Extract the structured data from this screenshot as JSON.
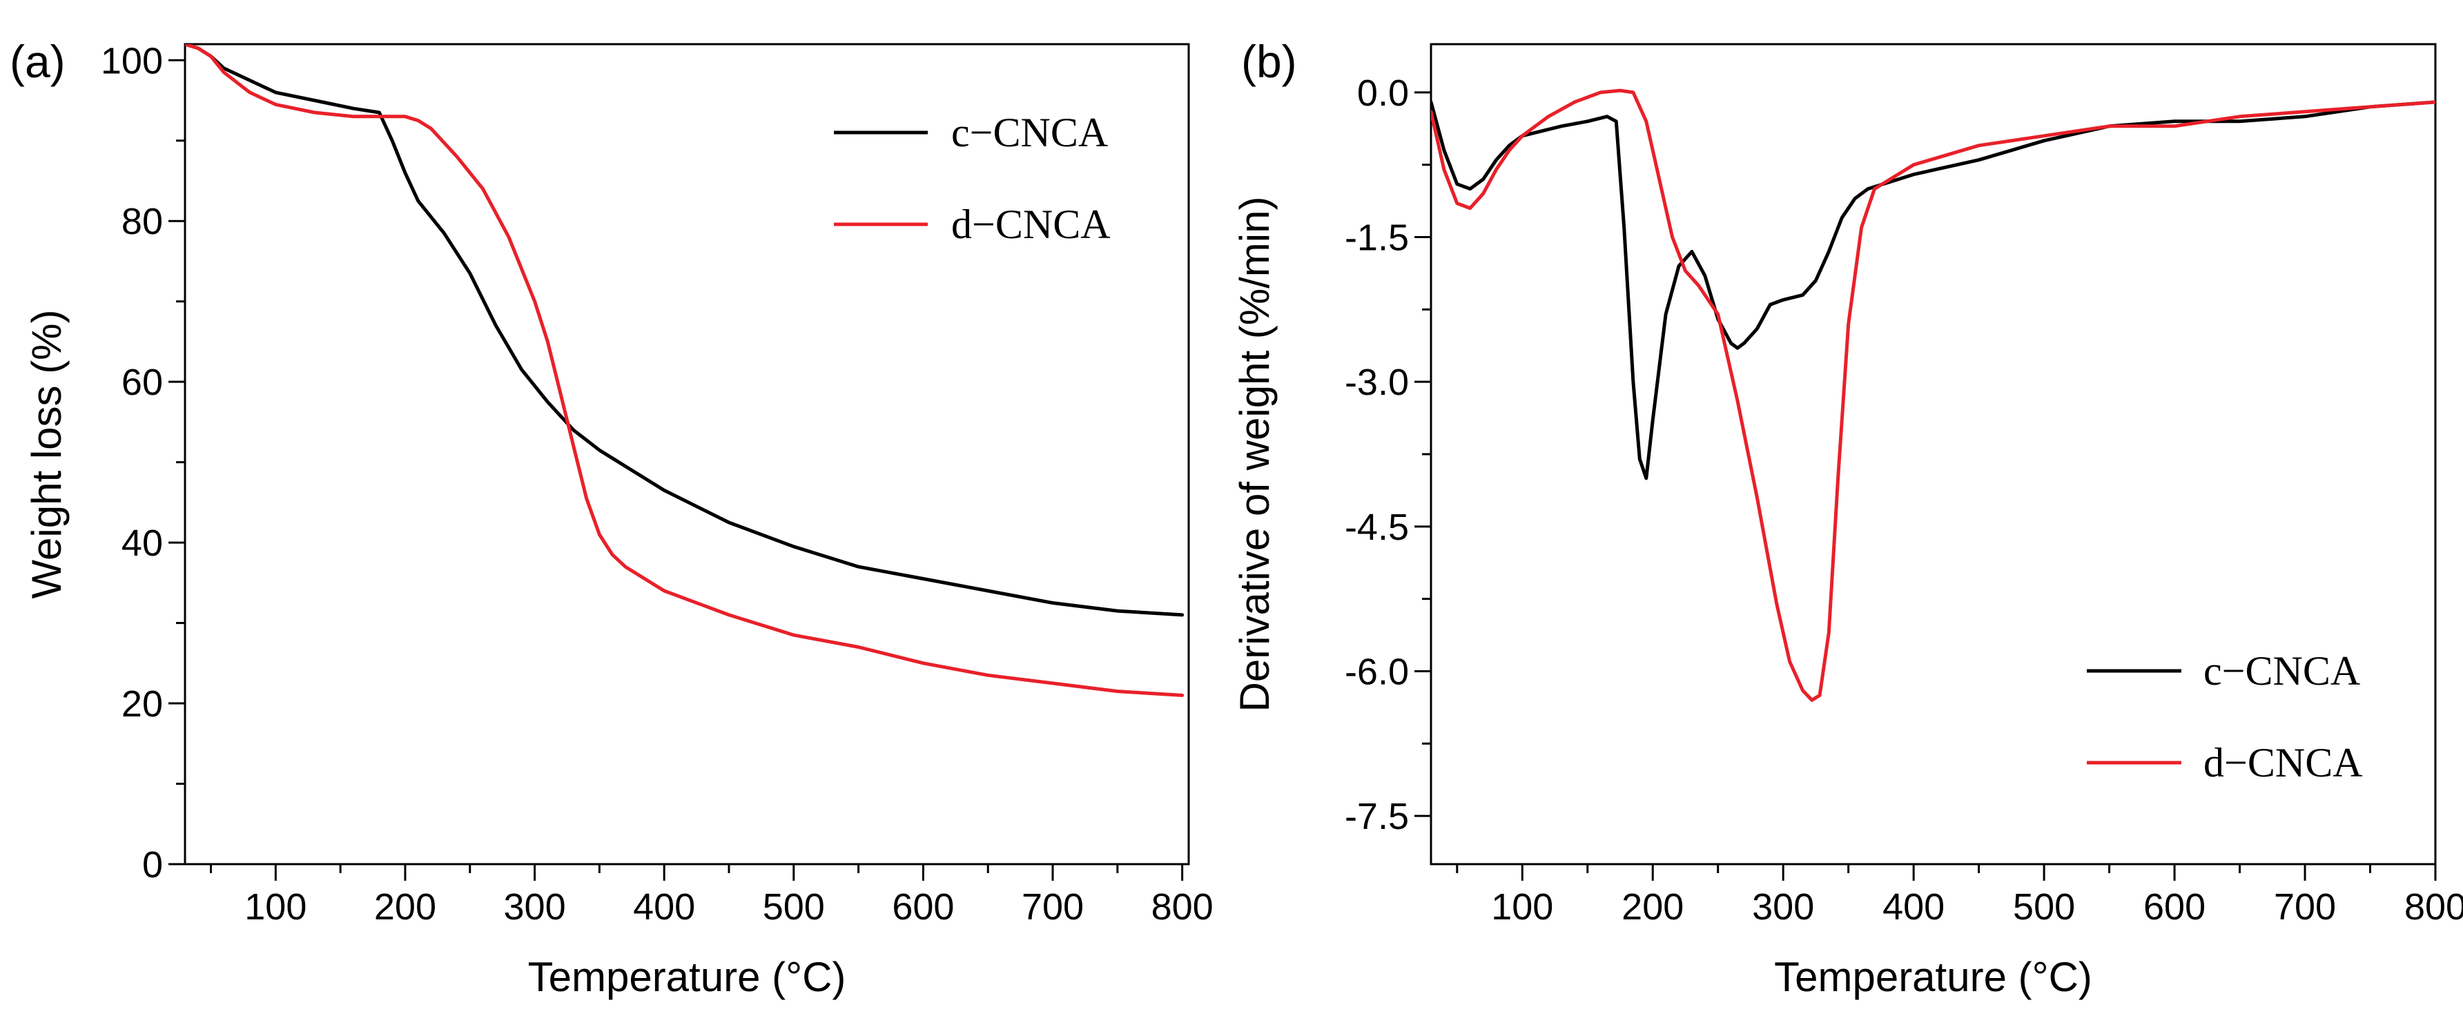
{
  "chart_data": [
    {
      "panel_label": "(a)",
      "type": "line",
      "xlabel": "Temperature (°C)",
      "ylabel": "Weight loss (%)",
      "xlim": [
        30,
        805
      ],
      "ylim": [
        0,
        102
      ],
      "xticks": [
        100,
        200,
        300,
        400,
        500,
        600,
        700,
        800
      ],
      "xtick_labels": [
        "100",
        "200",
        "300",
        "400",
        "500",
        "600",
        "700",
        "800"
      ],
      "yticks": [
        0,
        20,
        40,
        60,
        80,
        100
      ],
      "ytick_labels": [
        "0",
        "20",
        "40",
        "60",
        "80",
        "100"
      ],
      "legend_position": "top-right",
      "series": [
        {
          "name": "c−CNCA",
          "color": "#000000",
          "x": [
            30,
            40,
            50,
            60,
            80,
            100,
            130,
            160,
            180,
            190,
            200,
            210,
            230,
            250,
            270,
            290,
            310,
            330,
            350,
            370,
            400,
            450,
            500,
            550,
            600,
            650,
            700,
            750,
            800
          ],
          "y": [
            102,
            101.5,
            100.5,
            99,
            97.5,
            96,
            95,
            94,
            93.5,
            90,
            86,
            82.5,
            78.5,
            73.5,
            67,
            61.5,
            57.5,
            54,
            51.5,
            49.5,
            46.5,
            42.5,
            39.5,
            37,
            35.5,
            34,
            32.5,
            31.5,
            31
          ]
        },
        {
          "name": "d−CNCA",
          "color": "#e8212a",
          "x": [
            30,
            40,
            50,
            60,
            80,
            100,
            130,
            160,
            180,
            200,
            210,
            220,
            240,
            260,
            280,
            300,
            310,
            320,
            330,
            340,
            350,
            360,
            370,
            400,
            450,
            500,
            550,
            600,
            650,
            700,
            750,
            800
          ],
          "y": [
            102,
            101.5,
            100.5,
            98.5,
            96,
            94.5,
            93.5,
            93,
            93,
            93,
            92.5,
            91.5,
            88,
            84,
            78,
            70,
            65,
            58.5,
            52,
            45.5,
            41,
            38.5,
            37,
            34,
            31,
            28.5,
            27,
            25,
            23.5,
            22.5,
            21.5,
            21
          ]
        }
      ]
    },
    {
      "panel_label": "(b)",
      "type": "line",
      "xlabel": "Temperature (°C)",
      "ylabel": "Derivative of weight (%/min)",
      "xlim": [
        30,
        800
      ],
      "ylim": [
        -8.0,
        0.5
      ],
      "xticks": [
        100,
        200,
        300,
        400,
        500,
        600,
        700,
        800
      ],
      "xtick_labels": [
        "100",
        "200",
        "300",
        "400",
        "500",
        "600",
        "700",
        "800"
      ],
      "yticks": [
        0,
        -1.5,
        -3.0,
        -4.5,
        -6.0,
        -7.5
      ],
      "ytick_labels": [
        "0.0",
        "-1.5",
        "-3.0",
        "-4.5",
        "-6.0",
        "-7.5"
      ],
      "legend_position": "bottom-right",
      "series": [
        {
          "name": "c−CNCA",
          "color": "#000000",
          "x": [
            30,
            40,
            50,
            60,
            70,
            80,
            90,
            100,
            130,
            150,
            165,
            172,
            178,
            185,
            190,
            195,
            200,
            210,
            220,
            230,
            240,
            250,
            260,
            265,
            270,
            280,
            290,
            300,
            315,
            325,
            335,
            345,
            355,
            365,
            400,
            450,
            500,
            550,
            600,
            650,
            700,
            750,
            800
          ],
          "y": [
            -0.1,
            -0.6,
            -0.95,
            -1.0,
            -0.9,
            -0.7,
            -0.55,
            -0.45,
            -0.35,
            -0.3,
            -0.25,
            -0.3,
            -1.4,
            -3.0,
            -3.8,
            -4.0,
            -3.4,
            -2.3,
            -1.8,
            -1.65,
            -1.9,
            -2.35,
            -2.6,
            -2.65,
            -2.6,
            -2.45,
            -2.2,
            -2.15,
            -2.1,
            -1.95,
            -1.65,
            -1.3,
            -1.1,
            -1.0,
            -0.85,
            -0.7,
            -0.5,
            -0.35,
            -0.3,
            -0.3,
            -0.25,
            -0.15,
            -0.1
          ]
        },
        {
          "name": "d−CNCA",
          "color": "#e8212a",
          "x": [
            30,
            40,
            50,
            60,
            70,
            80,
            90,
            100,
            120,
            140,
            160,
            175,
            185,
            195,
            205,
            215,
            225,
            235,
            250,
            265,
            280,
            295,
            305,
            315,
            322,
            328,
            335,
            342,
            350,
            360,
            370,
            400,
            450,
            500,
            550,
            600,
            650,
            700,
            750,
            800
          ],
          "y": [
            -0.2,
            -0.8,
            -1.15,
            -1.2,
            -1.05,
            -0.8,
            -0.6,
            -0.45,
            -0.25,
            -0.1,
            0.0,
            0.02,
            0.0,
            -0.3,
            -0.9,
            -1.5,
            -1.85,
            -2.0,
            -2.3,
            -3.2,
            -4.2,
            -5.3,
            -5.9,
            -6.2,
            -6.3,
            -6.25,
            -5.6,
            -4.0,
            -2.4,
            -1.4,
            -1.0,
            -0.75,
            -0.55,
            -0.45,
            -0.35,
            -0.35,
            -0.25,
            -0.2,
            -0.15,
            -0.1
          ]
        }
      ]
    }
  ]
}
